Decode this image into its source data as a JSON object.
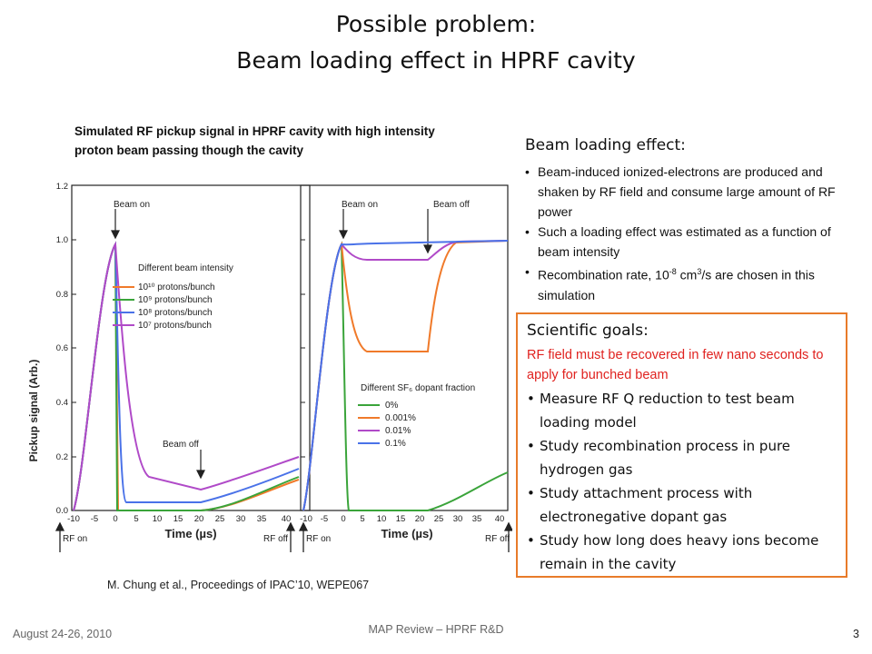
{
  "slide": {
    "title_line1": "Possible problem:",
    "title_line2": "Beam loading effect in HPRF cavity",
    "caption_line1": "Simulated RF pickup signal in HPRF  cavity with high intensity",
    "caption_line2": "proton beam passing though the cavity",
    "citation": "M. Chung et al., Proceedings of IPAC’10, WEPE067",
    "footer_left": "August 24-26, 2010",
    "footer_center": "MAP Review – HPRF R&D",
    "page_number": "3"
  },
  "beam_loading": {
    "heading": "Beam loading effect:",
    "bullets": [
      "Beam-induced ionized-electrons are produced and shaken by RF field and consume large amount of RF power",
      "Such a loading effect was estimated as a function of beam intensity",
      "Recombination rate, 10-8 cm3/s are chosen in this simulation"
    ]
  },
  "goals": {
    "heading": "Scientific goals:",
    "highlight": "RF field must be recovered in few nano seconds to apply for bunched beam",
    "bullets": [
      "Measure RF Q reduction to test beam loading model",
      "Study recombination process in pure hydrogen gas",
      "Study attachment process with electronegative dopant gas",
      "Study how long does heavy ions become remain in the cavity"
    ],
    "border_color": "#e87b2a",
    "highlight_color": "#e0221f"
  },
  "figure": {
    "y_axis_label": "Pickup signal (Arb.)",
    "y_ticks": [
      "0.0",
      "0.2",
      "0.4",
      "0.6",
      "0.8",
      "1.0",
      "1.2"
    ],
    "x_ticks_left": [
      "-10",
      "-5",
      "0",
      "5",
      "10",
      "15",
      "20",
      "25",
      "30",
      "35",
      "40"
    ],
    "x_ticks_right": [
      "-10",
      "-5",
      "0",
      "5",
      "10",
      "15",
      "20",
      "25",
      "30",
      "35",
      "40"
    ],
    "x_label": "Time (µs)",
    "beam_on": "Beam on",
    "beam_off": "Beam off",
    "rf_on": "RF on",
    "rf_off": "RF off",
    "legend_left_title": "Different beam intensity",
    "legend_left": [
      "10¹⁰ protons/bunch",
      "10⁹ protons/bunch",
      "10⁸ protons/bunch",
      "10⁷ protons/bunch"
    ],
    "legend_right_title": "Different SF₆ dopant fraction",
    "legend_right": [
      "0%",
      "0.001%",
      "0.01%",
      "0.1%"
    ],
    "colors": {
      "orange": "#f07a2a",
      "green": "#3aa43a",
      "blue": "#4a72e8",
      "purple": "#b04ac8",
      "axis": "#222222"
    }
  }
}
